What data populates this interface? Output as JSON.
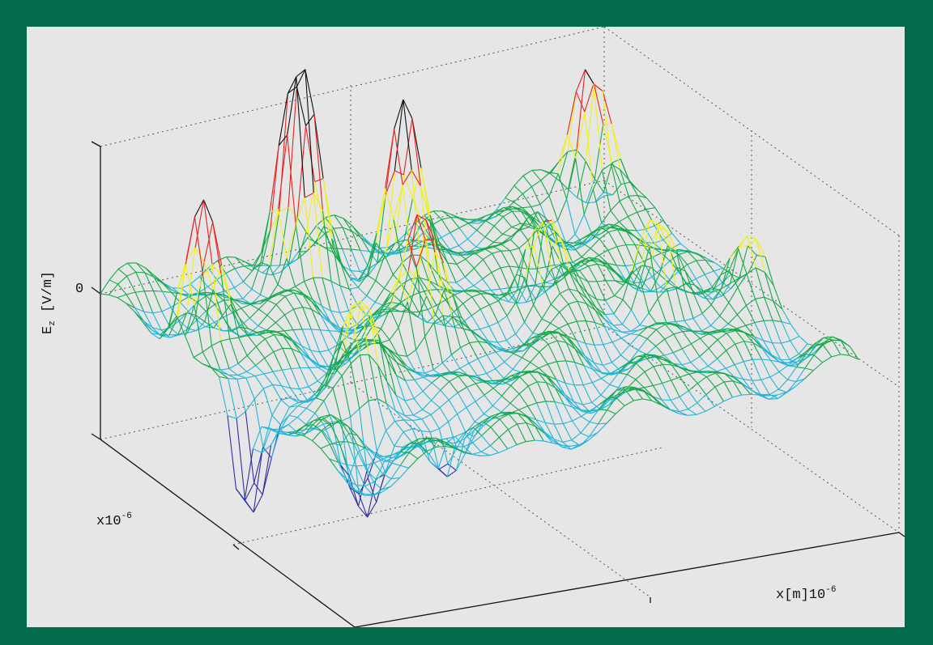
{
  "chart_data": {
    "type": "surface-mesh",
    "zlabel_main": "E",
    "zlabel_sub": "z",
    "zlabel_unit": " [V/m]",
    "ztick": "0",
    "ylabel_base": "x10",
    "ylabel_exp": "-6",
    "xlabel_base": "x[m]10",
    "xlabel_exp": "-6",
    "grid": "dotted",
    "colormap_levels": [
      -0.5,
      0,
      0.5,
      0.9,
      1.3
    ],
    "colors": [
      "#2c2fa0",
      "#23b5d8",
      "#16a94a",
      "#f0f01a",
      "#e62222",
      "#111111"
    ],
    "peaks": [
      {
        "x": 0.33,
        "y": 0.12,
        "h": 2.2
      },
      {
        "x": 0.5,
        "y": 0.2,
        "h": 1.9
      },
      {
        "x": 0.93,
        "y": 0.08,
        "h": 1.6
      },
      {
        "x": 0.05,
        "y": 0.3,
        "h": 1.4
      },
      {
        "x": 0.4,
        "y": 0.48,
        "h": 1.3
      },
      {
        "x": 0.65,
        "y": 0.45,
        "h": 1.1
      },
      {
        "x": 0.82,
        "y": 0.55,
        "h": 1.0
      },
      {
        "x": 0.2,
        "y": 0.62,
        "h": 0.9
      },
      {
        "x": 0.97,
        "y": 0.62,
        "h": 0.6
      },
      {
        "x": 0.75,
        "y": 0.25,
        "h": 0.7
      }
    ],
    "troughs": [
      {
        "x": 0.02,
        "y": 0.55,
        "h": -1.4
      },
      {
        "x": 0.14,
        "y": 0.75,
        "h": -1.1
      },
      {
        "x": 0.27,
        "y": 0.82,
        "h": -0.8
      }
    ]
  }
}
